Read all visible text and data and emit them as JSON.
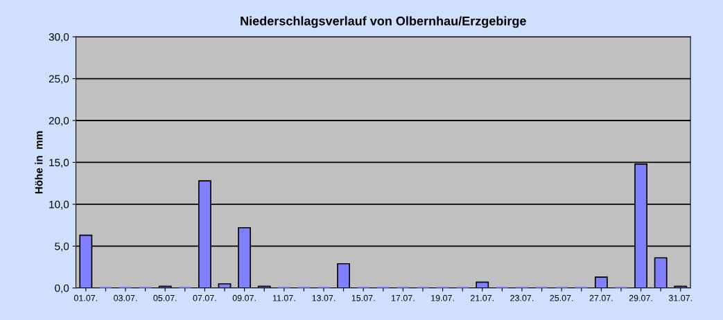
{
  "chart_data": {
    "type": "bar",
    "title": "Niederschlagsverlauf von Olbernhau/Erzgebirge",
    "ylabel": "Höhe in  mm",
    "categories": [
      "01.07.",
      null,
      "03.07.",
      null,
      "05.07.",
      null,
      "07.07.",
      null,
      "09.07.",
      null,
      "11.07.",
      null,
      "13.07.",
      null,
      "15.07.",
      null,
      "17.07.",
      null,
      "19.07.",
      null,
      "21.07.",
      null,
      "23.07.",
      null,
      "25.07.",
      null,
      "27.07.",
      null,
      "29.07.",
      null,
      "31.07."
    ],
    "values": [
      6.3,
      0,
      0,
      0,
      0.2,
      0,
      12.8,
      0.5,
      7.2,
      0.2,
      0,
      0,
      0,
      2.9,
      0,
      0,
      0,
      0,
      0,
      0,
      0.7,
      0,
      0,
      0,
      0,
      0,
      1.3,
      0,
      14.8,
      3.6,
      0.2
    ],
    "color": "#8080ff",
    "ylim": [
      0,
      30
    ],
    "yticks": [
      {
        "value": 0,
        "label": "0,0"
      },
      {
        "value": 5,
        "label": "5,0"
      },
      {
        "value": 10,
        "label": "10,0"
      },
      {
        "value": 15,
        "label": "15,0"
      },
      {
        "value": 20,
        "label": "20,0"
      },
      {
        "value": 25,
        "label": "25,0"
      },
      {
        "value": 30,
        "label": "30,0"
      }
    ],
    "grid": "y",
    "legend": false
  }
}
